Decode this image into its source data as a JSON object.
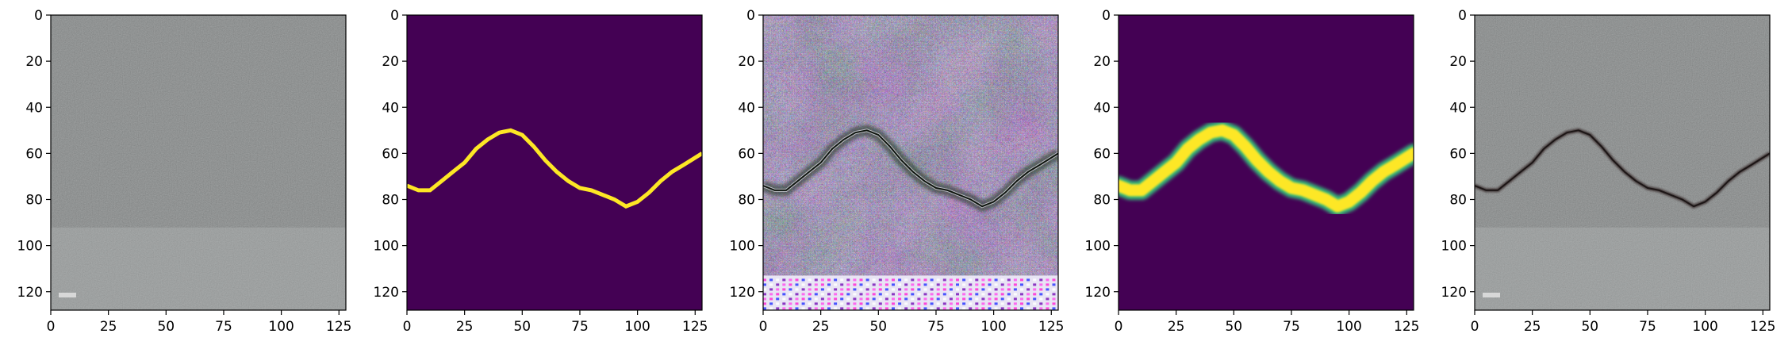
{
  "figure": {
    "panels": [
      {
        "kind": "photo-concrete"
      },
      {
        "kind": "mask-thin"
      },
      {
        "kind": "gan-output"
      },
      {
        "kind": "mask-thick"
      },
      {
        "kind": "photo-cracked"
      }
    ],
    "x_ticks": [
      "0",
      "25",
      "50",
      "75",
      "100",
      "125"
    ],
    "y_ticks": [
      "0",
      "20",
      "40",
      "60",
      "80",
      "100",
      "120"
    ],
    "x_tick_values": [
      0,
      25,
      50,
      75,
      100,
      125
    ],
    "y_tick_values": [
      0,
      20,
      40,
      60,
      80,
      100,
      120
    ],
    "image_extent": [
      0,
      128
    ],
    "crack_path": [
      [
        0,
        74
      ],
      [
        5,
        76
      ],
      [
        10,
        76
      ],
      [
        15,
        72
      ],
      [
        20,
        68
      ],
      [
        25,
        64
      ],
      [
        30,
        58
      ],
      [
        35,
        54
      ],
      [
        40,
        51
      ],
      [
        45,
        50
      ],
      [
        50,
        52
      ],
      [
        55,
        57
      ],
      [
        60,
        63
      ],
      [
        65,
        68
      ],
      [
        70,
        72
      ],
      [
        75,
        75
      ],
      [
        80,
        76
      ],
      [
        85,
        78
      ],
      [
        90,
        80
      ],
      [
        95,
        83
      ],
      [
        100,
        81
      ],
      [
        105,
        77
      ],
      [
        110,
        72
      ],
      [
        115,
        68
      ],
      [
        120,
        65
      ],
      [
        128,
        60
      ]
    ],
    "colors": {
      "viridis_background": "#440154",
      "viridis_crack": "#fde725",
      "viridis_edge": "#35b779",
      "concrete_base": "#a7aaaa"
    }
  }
}
